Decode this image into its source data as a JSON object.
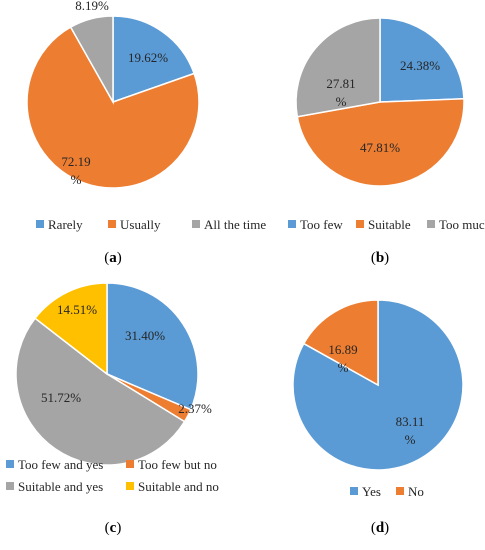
{
  "chart_data": [
    {
      "type": "pie",
      "panel_label": "a",
      "categories": [
        "Rarely",
        "Usually",
        "All the time"
      ],
      "values": [
        19.62,
        72.19,
        8.19
      ],
      "data_labels": [
        "19.62%",
        "72.19\n%",
        "8.19%"
      ],
      "colors": [
        "#5B9BD5",
        "#ED7D31",
        "#A5A5A5"
      ],
      "legend_position": "bottom",
      "title": ""
    },
    {
      "type": "pie",
      "panel_label": "b",
      "categories": [
        "Too few",
        "Suitable",
        "Too much"
      ],
      "values": [
        24.38,
        47.81,
        27.81
      ],
      "data_labels": [
        "24.38%",
        "47.81%",
        "27.81\n%"
      ],
      "colors": [
        "#5B9BD5",
        "#ED7D31",
        "#A5A5A5"
      ],
      "legend_position": "bottom",
      "title": ""
    },
    {
      "type": "pie",
      "panel_label": "c",
      "categories": [
        "Too few and yes",
        "Too few but no",
        "Suitable and yes",
        "Suitable and no"
      ],
      "values": [
        31.4,
        2.37,
        51.72,
        14.51
      ],
      "data_labels": [
        "31.40%",
        "2.37%",
        "51.72%",
        "14.51%"
      ],
      "colors": [
        "#5B9BD5",
        "#ED7D31",
        "#A5A5A5",
        "#FFC000"
      ],
      "legend_position": "bottom",
      "title": ""
    },
    {
      "type": "pie",
      "panel_label": "d",
      "categories": [
        "Yes",
        "No"
      ],
      "values": [
        83.11,
        16.89
      ],
      "data_labels": [
        "83.11\n%",
        "16.89\n%"
      ],
      "colors": [
        "#5B9BD5",
        "#ED7D31"
      ],
      "legend_position": "bottom",
      "title": ""
    }
  ],
  "panel_captions": [
    "(a)",
    "(b)",
    "(c)",
    "(d)"
  ]
}
